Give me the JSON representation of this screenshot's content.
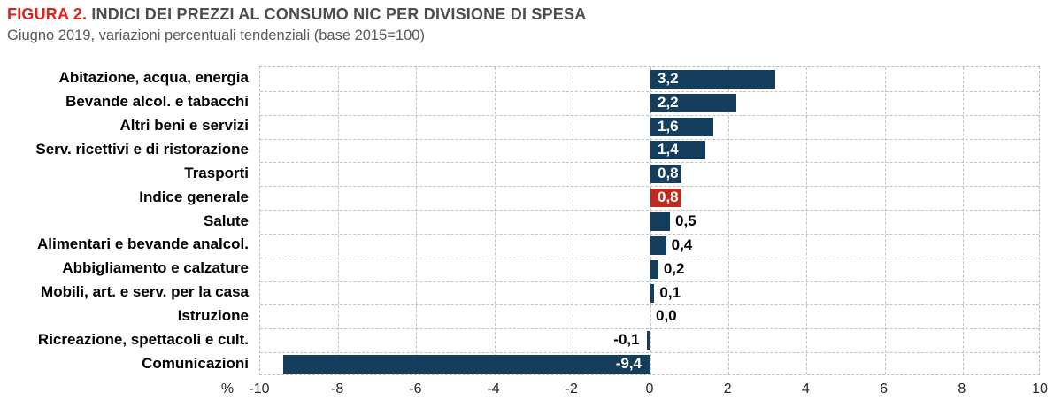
{
  "header": {
    "figure_label": "FIGURA 2.",
    "title": "INDICI DEI PREZZI AL CONSUMO NIC PER DIVISIONE DI SPESA",
    "subtitle": "Giugno 2019, variazioni percentuali tendenziali (base 2015=100)"
  },
  "chart_data": {
    "type": "bar",
    "orientation": "horizontal",
    "title": "INDICI DEI PREZZI AL CONSUMO NIC PER DIVISIONE DI SPESA",
    "subtitle": "Giugno 2019, variazioni percentuali tendenziali (base 2015=100)",
    "unit_symbol": "%",
    "categories": [
      "Abitazione, acqua, energia",
      "Bevande alcol. e tabacchi",
      "Altri beni e servizi",
      "Serv. ricettivi e di ristorazione",
      "Trasporti",
      "Indice generale",
      "Salute",
      "Alimentari e bevande analcol.",
      "Abbigliamento e calzature",
      "Mobili, art. e serv. per la casa",
      "Istruzione",
      "Ricreazione, spettacoli e cult.",
      "Comunicazioni"
    ],
    "values": [
      3.2,
      2.2,
      1.6,
      1.4,
      0.8,
      0.8,
      0.5,
      0.4,
      0.2,
      0.1,
      0.0,
      -0.1,
      -9.4
    ],
    "value_labels": [
      "3,2",
      "2,2",
      "1,6",
      "1,4",
      "0,8",
      "0,8",
      "0,5",
      "0,4",
      "0,2",
      "0,1",
      "0,0",
      "-0,1",
      "-9,4"
    ],
    "label_inside": [
      true,
      true,
      true,
      true,
      true,
      true,
      false,
      false,
      false,
      false,
      false,
      false,
      true
    ],
    "highlight_index": 5,
    "xlim": [
      -10,
      10
    ],
    "xticks": [
      "-10",
      "-8",
      "-6",
      "-4",
      "-2",
      "0",
      "2",
      "4",
      "6",
      "8",
      "10"
    ],
    "xtick_values": [
      -10,
      -8,
      -6,
      -4,
      -2,
      0,
      2,
      4,
      6,
      8,
      10
    ],
    "grid": "dashed",
    "legend": "none",
    "colors": {
      "default_bar": "#153d5c",
      "highlight_bar": "#c02a1e",
      "grid": "#c3c3c3",
      "accent_red": "#e2231a",
      "title_gray": "#4d4d4f",
      "subtitle_gray": "#595959"
    }
  }
}
